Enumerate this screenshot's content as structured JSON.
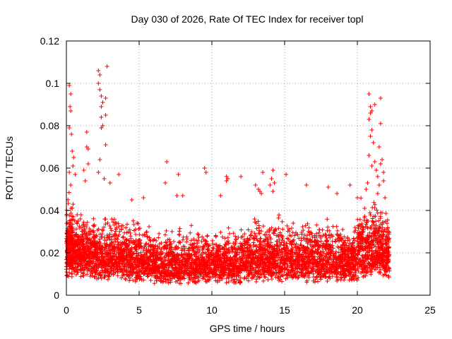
{
  "chart_data": {
    "type": "scatter",
    "title": "Day 030 of 2026, Rate Of TEC Index for receiver topl",
    "xlabel": "GPS time / hours",
    "ylabel": "ROTI / TECUs",
    "xlim": [
      0,
      25
    ],
    "ylim": [
      0,
      0.12
    ],
    "xticks": [
      0,
      5,
      10,
      15,
      20,
      25
    ],
    "yticks": [
      0,
      0.02,
      0.04,
      0.06,
      0.08,
      0.1,
      0.12
    ],
    "xtick_labels": [
      "0",
      "5",
      "10",
      "15",
      "20",
      "25"
    ],
    "ytick_labels": [
      "0",
      "0.02",
      "0.04",
      "0.06",
      "0.08",
      "0.1",
      "0.12"
    ],
    "grid": true,
    "marker": "+",
    "color": "#ff0000",
    "bands": [
      {
        "x0": 0.0,
        "x1": 0.5,
        "low": 0.008,
        "high": 0.045,
        "count": 260
      },
      {
        "x0": 0.5,
        "x1": 2.0,
        "low": 0.008,
        "high": 0.04,
        "count": 420
      },
      {
        "x0": 2.0,
        "x1": 4.0,
        "low": 0.007,
        "high": 0.038,
        "count": 440
      },
      {
        "x0": 4.0,
        "x1": 6.0,
        "low": 0.006,
        "high": 0.034,
        "count": 440
      },
      {
        "x0": 6.0,
        "x1": 8.5,
        "low": 0.005,
        "high": 0.03,
        "count": 520
      },
      {
        "x0": 8.5,
        "x1": 12.0,
        "low": 0.005,
        "high": 0.032,
        "count": 700
      },
      {
        "x0": 12.0,
        "x1": 15.0,
        "low": 0.006,
        "high": 0.036,
        "count": 620
      },
      {
        "x0": 15.0,
        "x1": 18.0,
        "low": 0.006,
        "high": 0.034,
        "count": 600
      },
      {
        "x0": 18.0,
        "x1": 20.0,
        "low": 0.006,
        "high": 0.034,
        "count": 420
      },
      {
        "x0": 20.0,
        "x1": 21.5,
        "low": 0.008,
        "high": 0.045,
        "count": 360
      },
      {
        "x0": 21.5,
        "x1": 22.2,
        "low": 0.008,
        "high": 0.04,
        "count": 200
      }
    ],
    "points": [
      [
        0.2,
        0.099
      ],
      [
        0.3,
        0.095
      ],
      [
        0.25,
        0.089
      ],
      [
        0.3,
        0.087
      ],
      [
        0.2,
        0.079
      ],
      [
        0.35,
        0.076
      ],
      [
        0.4,
        0.068
      ],
      [
        0.5,
        0.065
      ],
      [
        0.45,
        0.061
      ],
      [
        0.2,
        0.058
      ],
      [
        0.6,
        0.057
      ],
      [
        0.3,
        0.052
      ],
      [
        1.2,
        0.059
      ],
      [
        1.4,
        0.077
      ],
      [
        1.4,
        0.07
      ],
      [
        1.5,
        0.069
      ],
      [
        1.5,
        0.062
      ],
      [
        1.3,
        0.054
      ],
      [
        2.2,
        0.106
      ],
      [
        2.3,
        0.104
      ],
      [
        2.2,
        0.1
      ],
      [
        2.3,
        0.097
      ],
      [
        2.4,
        0.094
      ],
      [
        2.5,
        0.091
      ],
      [
        2.4,
        0.089
      ],
      [
        2.8,
        0.108
      ],
      [
        2.7,
        0.093
      ],
      [
        2.4,
        0.084
      ],
      [
        2.7,
        0.085
      ],
      [
        2.5,
        0.08
      ],
      [
        2.4,
        0.079
      ],
      [
        2.7,
        0.071
      ],
      [
        2.3,
        0.064
      ],
      [
        2.2,
        0.058
      ],
      [
        2.6,
        0.055
      ],
      [
        3.6,
        0.057
      ],
      [
        3.0,
        0.053
      ],
      [
        4.5,
        0.045
      ],
      [
        5.3,
        0.046
      ],
      [
        6.9,
        0.063
      ],
      [
        6.8,
        0.053
      ],
      [
        7.6,
        0.047
      ],
      [
        7.7,
        0.057
      ],
      [
        8.0,
        0.047
      ],
      [
        9.5,
        0.06
      ],
      [
        9.6,
        0.058
      ],
      [
        10.6,
        0.047
      ],
      [
        11.0,
        0.056
      ],
      [
        11.1,
        0.055
      ],
      [
        11.0,
        0.054
      ],
      [
        12.0,
        0.056
      ],
      [
        13.0,
        0.052
      ],
      [
        13.2,
        0.05
      ],
      [
        13.3,
        0.049
      ],
      [
        13.4,
        0.048
      ],
      [
        13.5,
        0.058
      ],
      [
        14.0,
        0.052
      ],
      [
        14.1,
        0.055
      ],
      [
        14.2,
        0.059
      ],
      [
        14.3,
        0.053
      ],
      [
        14.2,
        0.049
      ],
      [
        15.1,
        0.057
      ],
      [
        16.5,
        0.052
      ],
      [
        18.0,
        0.051
      ],
      [
        18.6,
        0.048
      ],
      [
        19.5,
        0.052
      ],
      [
        20.0,
        0.046
      ],
      [
        20.5,
        0.041
      ],
      [
        20.6,
        0.05
      ],
      [
        20.7,
        0.053
      ],
      [
        20.8,
        0.095
      ],
      [
        20.9,
        0.089
      ],
      [
        21.0,
        0.087
      ],
      [
        21.2,
        0.09
      ],
      [
        20.9,
        0.086
      ],
      [
        20.8,
        0.083
      ],
      [
        21.0,
        0.078
      ],
      [
        20.9,
        0.075
      ],
      [
        21.1,
        0.072
      ],
      [
        20.8,
        0.066
      ],
      [
        21.2,
        0.063
      ],
      [
        21.0,
        0.061
      ],
      [
        21.3,
        0.059
      ],
      [
        21.4,
        0.056
      ],
      [
        21.6,
        0.093
      ],
      [
        21.6,
        0.081
      ],
      [
        21.5,
        0.07
      ],
      [
        21.7,
        0.064
      ],
      [
        21.6,
        0.062
      ],
      [
        21.8,
        0.058
      ],
      [
        21.8,
        0.054
      ],
      [
        21.5,
        0.052
      ],
      [
        21.4,
        0.048
      ],
      [
        21.9,
        0.046
      ]
    ]
  }
}
